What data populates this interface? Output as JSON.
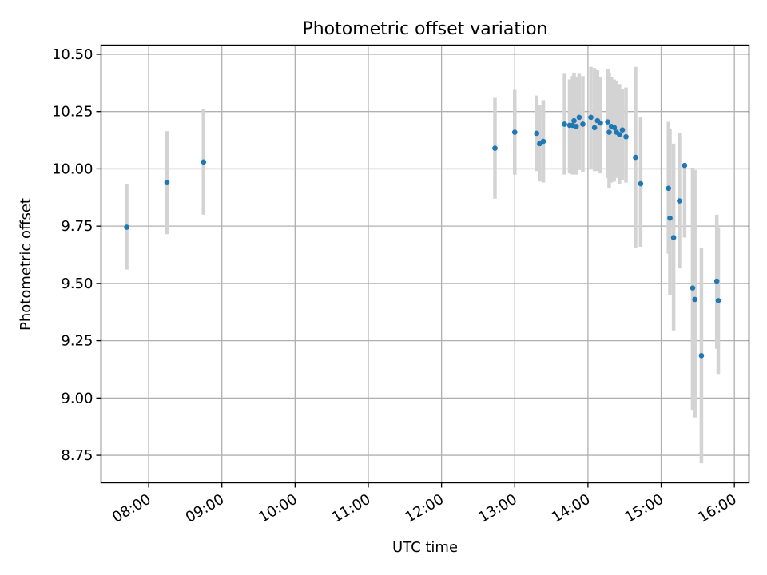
{
  "chart_data": {
    "type": "scatter",
    "title": "Photometric offset variation",
    "xlabel": "UTC time",
    "ylabel": "Photometric offset",
    "xlim": [
      7.35,
      16.2
    ],
    "ylim": [
      8.63,
      10.54
    ],
    "grid": true,
    "x_ticks": [
      {
        "value": 8,
        "label": "08:00"
      },
      {
        "value": 9,
        "label": "09:00"
      },
      {
        "value": 10,
        "label": "10:00"
      },
      {
        "value": 11,
        "label": "11:00"
      },
      {
        "value": 12,
        "label": "12:00"
      },
      {
        "value": 13,
        "label": "13:00"
      },
      {
        "value": 14,
        "label": "14:00"
      },
      {
        "value": 15,
        "label": "15:00"
      },
      {
        "value": 16,
        "label": "16:00"
      }
    ],
    "y_ticks": [
      {
        "value": 8.75,
        "label": "8.75"
      },
      {
        "value": 9.0,
        "label": "9.00"
      },
      {
        "value": 9.25,
        "label": "9.25"
      },
      {
        "value": 9.5,
        "label": "9.50"
      },
      {
        "value": 9.75,
        "label": "9.75"
      },
      {
        "value": 10.0,
        "label": "10.00"
      },
      {
        "value": 10.25,
        "label": "10.25"
      },
      {
        "value": 10.5,
        "label": "10.50"
      }
    ],
    "colors": {
      "point": "#1f77b4",
      "errorbar": "#d3d3d3"
    },
    "series": [
      {
        "name": "offset",
        "points": [
          {
            "x": 7.7,
            "y": 9.745,
            "lo": 9.56,
            "hi": 9.935
          },
          {
            "x": 8.25,
            "y": 9.94,
            "lo": 9.715,
            "hi": 10.165
          },
          {
            "x": 8.75,
            "y": 10.03,
            "lo": 9.8,
            "hi": 10.26
          },
          {
            "x": 12.73,
            "y": 10.09,
            "lo": 9.87,
            "hi": 10.31
          },
          {
            "x": 13.0,
            "y": 10.16,
            "lo": 9.975,
            "hi": 10.345
          },
          {
            "x": 13.3,
            "y": 10.155,
            "lo": 9.99,
            "hi": 10.32
          },
          {
            "x": 13.34,
            "y": 10.11,
            "lo": 9.945,
            "hi": 10.28
          },
          {
            "x": 13.39,
            "y": 10.12,
            "lo": 9.94,
            "hi": 10.3
          },
          {
            "x": 13.68,
            "y": 10.195,
            "lo": 9.975,
            "hi": 10.415
          },
          {
            "x": 13.75,
            "y": 10.19,
            "lo": 9.98,
            "hi": 10.39
          },
          {
            "x": 13.79,
            "y": 10.19,
            "lo": 9.975,
            "hi": 10.405
          },
          {
            "x": 13.81,
            "y": 10.21,
            "lo": 9.985,
            "hi": 10.42
          },
          {
            "x": 13.84,
            "y": 10.185,
            "lo": 9.975,
            "hi": 10.4
          },
          {
            "x": 13.88,
            "y": 10.225,
            "lo": 9.995,
            "hi": 10.415
          },
          {
            "x": 13.93,
            "y": 10.195,
            "lo": 9.985,
            "hi": 10.405
          },
          {
            "x": 14.04,
            "y": 10.225,
            "lo": 10.0,
            "hi": 10.445
          },
          {
            "x": 14.09,
            "y": 10.18,
            "lo": 9.99,
            "hi": 10.44
          },
          {
            "x": 14.13,
            "y": 10.21,
            "lo": 9.99,
            "hi": 10.43
          },
          {
            "x": 14.17,
            "y": 10.2,
            "lo": 9.98,
            "hi": 10.4
          },
          {
            "x": 14.27,
            "y": 10.205,
            "lo": 9.96,
            "hi": 10.435
          },
          {
            "x": 14.29,
            "y": 10.16,
            "lo": 9.915,
            "hi": 10.42
          },
          {
            "x": 14.32,
            "y": 10.185,
            "lo": 9.94,
            "hi": 10.4
          },
          {
            "x": 14.36,
            "y": 10.18,
            "lo": 9.945,
            "hi": 10.39
          },
          {
            "x": 14.39,
            "y": 10.16,
            "lo": 9.96,
            "hi": 10.385
          },
          {
            "x": 14.43,
            "y": 10.15,
            "lo": 9.935,
            "hi": 10.37
          },
          {
            "x": 14.47,
            "y": 10.17,
            "lo": 9.95,
            "hi": 10.35
          },
          {
            "x": 14.52,
            "y": 10.14,
            "lo": 9.94,
            "hi": 10.355
          },
          {
            "x": 14.65,
            "y": 10.05,
            "lo": 9.655,
            "hi": 10.445
          },
          {
            "x": 14.72,
            "y": 9.935,
            "lo": 9.66,
            "hi": 10.225
          },
          {
            "x": 15.1,
            "y": 9.915,
            "lo": 9.63,
            "hi": 10.205
          },
          {
            "x": 15.12,
            "y": 9.785,
            "lo": 9.45,
            "hi": 10.175
          },
          {
            "x": 15.17,
            "y": 9.7,
            "lo": 9.295,
            "hi": 10.11
          },
          {
            "x": 15.25,
            "y": 9.86,
            "lo": 9.565,
            "hi": 10.155
          },
          {
            "x": 15.32,
            "y": 10.015,
            "lo": 9.7,
            "hi": 10.02
          },
          {
            "x": 15.43,
            "y": 9.48,
            "lo": 8.945,
            "hi": 10.005
          },
          {
            "x": 15.46,
            "y": 9.43,
            "lo": 8.915,
            "hi": 9.995
          },
          {
            "x": 15.55,
            "y": 9.185,
            "lo": 8.715,
            "hi": 9.655
          },
          {
            "x": 15.76,
            "y": 9.51,
            "lo": 9.215,
            "hi": 9.8
          },
          {
            "x": 15.78,
            "y": 9.425,
            "lo": 9.105,
            "hi": 9.745
          }
        ]
      }
    ]
  }
}
